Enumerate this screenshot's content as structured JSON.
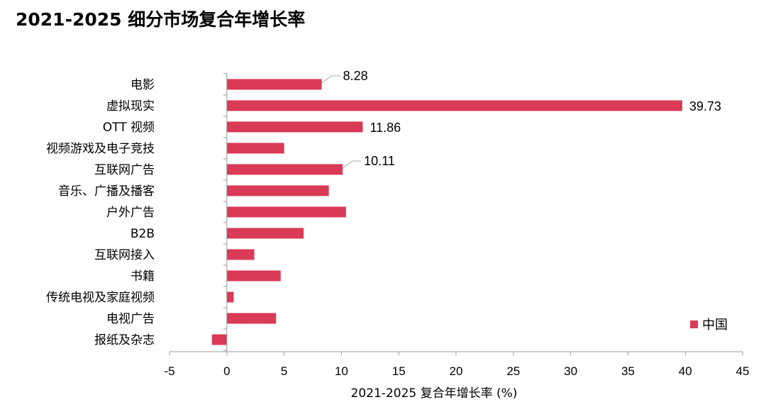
{
  "chart_data": {
    "type": "bar",
    "orientation": "horizontal",
    "title": "2021-2025 细分市场复合年增长率",
    "xlabel": "2021-2025 复合年增长率 (%)",
    "ylabel": "",
    "xlim": [
      -5,
      45
    ],
    "xticks": [
      -5,
      0,
      5,
      10,
      15,
      20,
      25,
      30,
      35,
      40,
      45
    ],
    "grid": false,
    "legend_position": "bottom-right",
    "bar_color": "#d93a55",
    "categories": [
      "电影",
      "虚拟现实",
      "OTT 视频",
      "视频游戏及电子竞技",
      "互联网广告",
      "音乐、广播及播客",
      "户外广告",
      "B2B",
      "互联网接入",
      "书籍",
      "传统电视及家庭视频",
      "电视广告",
      "报纸及杂志"
    ],
    "series": [
      {
        "name": "中国",
        "values": [
          8.28,
          39.73,
          11.86,
          5.0,
          10.11,
          8.9,
          10.4,
          6.7,
          2.4,
          4.7,
          0.6,
          4.3,
          -1.3
        ]
      }
    ],
    "data_labels": [
      {
        "category": "电影",
        "text": "8.28",
        "leader": true
      },
      {
        "category": "虚拟现实",
        "text": "39.73",
        "leader": false
      },
      {
        "category": "OTT 视频",
        "text": "11.86",
        "leader": false
      },
      {
        "category": "互联网广告",
        "text": "10.11",
        "leader": true
      }
    ]
  }
}
